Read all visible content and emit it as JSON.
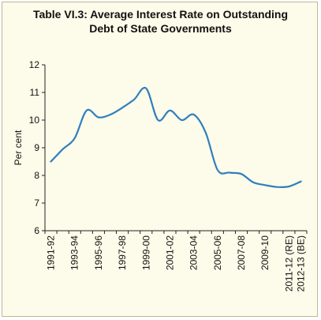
{
  "title_line1": "Table VI.3: Average Interest Rate on Outstanding",
  "title_line2": "Debt of State Governments",
  "chart_data": {
    "type": "line",
    "ylabel": "Per cent",
    "ylim": [
      6,
      12
    ],
    "yticks": [
      6,
      7,
      8,
      9,
      10,
      11,
      12
    ],
    "x_tick_labels": [
      "1991-92",
      "1993-94",
      "1995-96",
      "1997-98",
      "1999-00",
      "2001-02",
      "2003-04",
      "2005-06",
      "2007-08",
      "2009-10",
      "2011-12 (RE)",
      "2012-13 (BE)"
    ],
    "x": [
      "1991-92",
      "1992-93",
      "1993-94",
      "1994-95",
      "1995-96",
      "1996-97",
      "1997-98",
      "1998-99",
      "1999-00",
      "2000-01",
      "2001-02",
      "2002-03",
      "2003-04",
      "2004-05",
      "2005-06",
      "2006-07",
      "2007-08",
      "2008-09",
      "2009-10",
      "2010-11",
      "2011-12 (RE)",
      "2012-13 (BE)"
    ],
    "values": [
      8.5,
      8.95,
      9.35,
      10.35,
      10.1,
      10.2,
      10.45,
      10.75,
      11.15,
      10.0,
      10.35,
      10.0,
      10.2,
      9.55,
      8.2,
      8.1,
      8.05,
      7.75,
      7.65,
      7.58,
      7.6,
      7.78
    ],
    "line_color": "#2f7fbf",
    "grid": false,
    "legend": "none"
  }
}
